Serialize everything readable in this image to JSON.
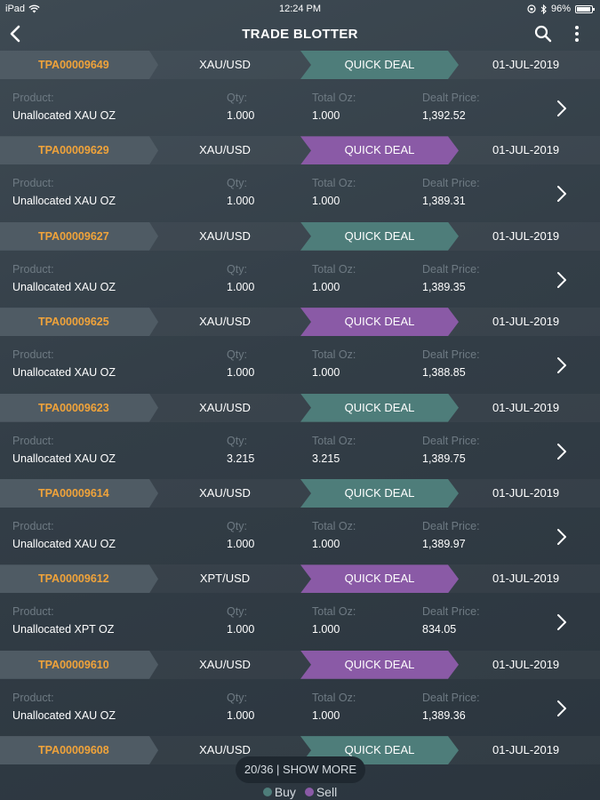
{
  "status_bar": {
    "device": "iPad",
    "time": "12:24 PM",
    "battery": "96%"
  },
  "nav": {
    "title": "TRADE BLOTTER"
  },
  "labels": {
    "product": "Product:",
    "qty": "Qty:",
    "total_oz": "Total Oz:",
    "dealt_price": "Dealt Price:"
  },
  "trades": [
    {
      "id": "TPA00009649",
      "pair": "XAU/USD",
      "deal": "QUICK DEAL",
      "side": "buy",
      "date": "01-JUL-2019",
      "product": "Unallocated XAU OZ",
      "qty": "1.000",
      "total_oz": "1.000",
      "price": "1,392.52"
    },
    {
      "id": "TPA00009629",
      "pair": "XAU/USD",
      "deal": "QUICK DEAL",
      "side": "sell",
      "date": "01-JUL-2019",
      "product": "Unallocated XAU OZ",
      "qty": "1.000",
      "total_oz": "1.000",
      "price": "1,389.31"
    },
    {
      "id": "TPA00009627",
      "pair": "XAU/USD",
      "deal": "QUICK DEAL",
      "side": "buy",
      "date": "01-JUL-2019",
      "product": "Unallocated XAU OZ",
      "qty": "1.000",
      "total_oz": "1.000",
      "price": "1,389.35"
    },
    {
      "id": "TPA00009625",
      "pair": "XAU/USD",
      "deal": "QUICK DEAL",
      "side": "sell",
      "date": "01-JUL-2019",
      "product": "Unallocated XAU OZ",
      "qty": "1.000",
      "total_oz": "1.000",
      "price": "1,388.85"
    },
    {
      "id": "TPA00009623",
      "pair": "XAU/USD",
      "deal": "QUICK DEAL",
      "side": "buy",
      "date": "01-JUL-2019",
      "product": "Unallocated XAU OZ",
      "qty": "3.215",
      "total_oz": "3.215",
      "price": "1,389.75"
    },
    {
      "id": "TPA00009614",
      "pair": "XAU/USD",
      "deal": "QUICK DEAL",
      "side": "buy",
      "date": "01-JUL-2019",
      "product": "Unallocated XAU OZ",
      "qty": "1.000",
      "total_oz": "1.000",
      "price": "1,389.97"
    },
    {
      "id": "TPA00009612",
      "pair": "XPT/USD",
      "deal": "QUICK DEAL",
      "side": "sell",
      "date": "01-JUL-2019",
      "product": "Unallocated XPT OZ",
      "qty": "1.000",
      "total_oz": "1.000",
      "price": "834.05"
    },
    {
      "id": "TPA00009610",
      "pair": "XAU/USD",
      "deal": "QUICK DEAL",
      "side": "sell",
      "date": "01-JUL-2019",
      "product": "Unallocated XAU OZ",
      "qty": "1.000",
      "total_oz": "1.000",
      "price": "1,389.36"
    },
    {
      "id": "TPA00009608",
      "pair": "XAU/USD",
      "deal": "QUICK DEAL",
      "side": "buy",
      "date": "01-JUL-2019"
    }
  ],
  "footer": {
    "show_more": "20/36 | SHOW MORE",
    "legend_buy": "Buy",
    "legend_sell": "Sell",
    "buy_color": "#4e7d7a",
    "sell_color": "#8a5aa6"
  }
}
